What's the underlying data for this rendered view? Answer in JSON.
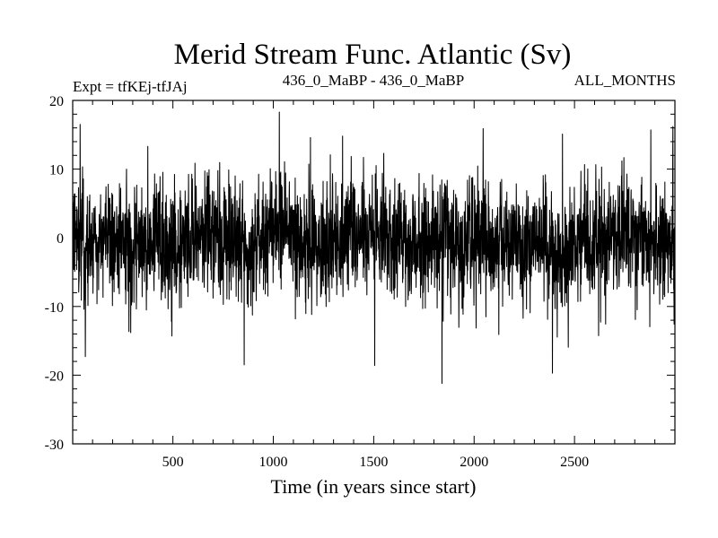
{
  "chart_data": {
    "type": "line",
    "title": "Merid Stream Func. Atlantic (Sv)",
    "left_label": "Expt = tfKEj-tfJAj",
    "center_label": "436_0_MaBP - 436_0_MaBP",
    "right_label": "ALL_MONTHS",
    "xlabel": "Time (in years since start)",
    "ylabel": "",
    "xlim": [
      1,
      3000
    ],
    "ylim": [
      -30,
      20
    ],
    "x_ticks": [
      500,
      1000,
      1500,
      2000,
      2500
    ],
    "y_ticks": [
      -30,
      -20,
      -10,
      0,
      10,
      20
    ],
    "grid": false,
    "series": [
      {
        "color": "#000000",
        "n_points": 3000,
        "x_start": 1,
        "x_step": 1,
        "mean": -0.8,
        "std_dev": 4.6,
        "noise_seed": 436,
        "peaks": [
          {
            "x": 38,
            "value": 16.5
          },
          {
            "x": 64,
            "value": -17.3
          },
          {
            "x": 375,
            "value": 13.3
          },
          {
            "x": 495,
            "value": -14.3
          },
          {
            "x": 855,
            "value": -18.5
          },
          {
            "x": 1030,
            "value": 18.3
          },
          {
            "x": 1185,
            "value": 14.6
          },
          {
            "x": 1345,
            "value": 14.8
          },
          {
            "x": 1505,
            "value": -18.6
          },
          {
            "x": 1840,
            "value": -21.2
          },
          {
            "x": 2045,
            "value": 15.9
          },
          {
            "x": 2390,
            "value": -19.7
          },
          {
            "x": 2440,
            "value": 15.1
          },
          {
            "x": 2880,
            "value": 15.7
          },
          {
            "x": 2990,
            "value": 16.2
          }
        ]
      }
    ]
  }
}
